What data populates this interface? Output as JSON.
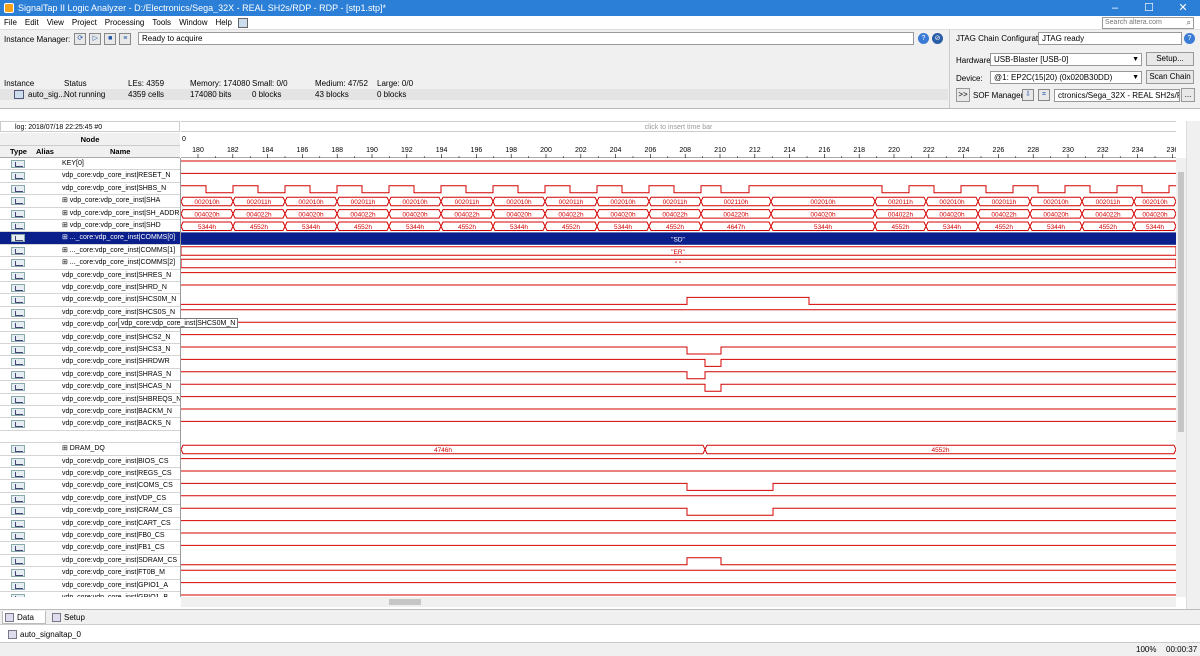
{
  "window": {
    "title": "SignalTap II Logic Analyzer - D:/Electronics/Sega_32X - REAL SH2s/RDP - RDP - [stp1.stp]*",
    "minimize": "–",
    "maximize": "☐",
    "close": "✕"
  },
  "menu": {
    "items": [
      "File",
      "Edit",
      "View",
      "Project",
      "Processing",
      "Tools",
      "Window",
      "Help"
    ],
    "search_placeholder": "Search altera.com"
  },
  "instance_manager": {
    "label": "Instance Manager:",
    "status": "Ready to acquire",
    "headers": [
      "Instance",
      "Status",
      "LEs: 4359",
      "Memory: 174080",
      "Small: 0/0",
      "Medium: 47/52",
      "Large: 0/0"
    ],
    "row": [
      "auto_sig...",
      "Not running",
      "4359 cells",
      "174080 bits",
      "0 blocks",
      "43 blocks",
      "0 blocks"
    ]
  },
  "jtag": {
    "config_label": "JTAG Chain Configuration:",
    "config_status": "JTAG ready",
    "hardware_label": "Hardware:",
    "hardware_value": "USB-Blaster [USB-0]",
    "setup_label": "Setup...",
    "device_label": "Device:",
    "device_value": "@1: EP2C(15|20) (0x020B30DD)",
    "scan_label": "Scan Chain",
    "sof_toggle": ">>",
    "sof_label": "SOF Manager:",
    "sof_value": "ctronics/Sega_32X - REAL SH2s/RDP.sof",
    "browse_label": "..."
  },
  "waveform": {
    "log": "log: 2018/07/18 22:25:45  #0",
    "insert_hint": "click to insert time bar",
    "node_header": "Node",
    "col_type": "Type",
    "col_alias": "Alias",
    "col_name": "Name",
    "ruler_origin": "0",
    "ruler_ticks": [
      "180",
      "182",
      "184",
      "186",
      "188",
      "190",
      "192",
      "194",
      "196",
      "198",
      "200",
      "202",
      "204",
      "206",
      "208",
      "210",
      "212",
      "214",
      "216",
      "218",
      "220",
      "222",
      "224",
      "226",
      "228",
      "230",
      "232",
      "234",
      "236"
    ],
    "tooltip": "vdp_core:vdp_core_inst|SHCS0M_N",
    "signals": [
      {
        "name": "KEY[0]",
        "bus": false
      },
      {
        "name": "vdp_core:vdp_core_inst|RESET_N",
        "bus": false
      },
      {
        "name": "vdp_core:vdp_core_inst|SHBS_N",
        "bus": false
      },
      {
        "name": "vdp_core:vdp_core_inst|SHA",
        "bus": true
      },
      {
        "name": "vdp_core:vdp_core_inst|SH_ADDR",
        "bus": true
      },
      {
        "name": "vdp_core:vdp_core_inst|SHD",
        "bus": true
      },
      {
        "name": "..._core:vdp_core_inst|COMMS[0]",
        "bus": true
      },
      {
        "name": "..._core:vdp_core_inst|COMMS[1]",
        "bus": true
      },
      {
        "name": "..._core:vdp_core_inst|COMMS[2]",
        "bus": true
      },
      {
        "name": "vdp_core:vdp_core_inst|SHRES_N",
        "bus": false
      },
      {
        "name": "vdp_core:vdp_core_inst|SHRD_N",
        "bus": false
      },
      {
        "name": "vdp_core:vdp_core_inst|SHCS0M_N",
        "bus": false
      },
      {
        "name": "vdp_core:vdp_core_inst|SHCS0S_N",
        "bus": false
      },
      {
        "name": "vdp_core:vdp_core_inst|SHCS1_N",
        "bus": false
      },
      {
        "name": "vdp_core:vdp_core_inst|SHCS2_N",
        "bus": false
      },
      {
        "name": "vdp_core:vdp_core_inst|SHCS3_N",
        "bus": false
      },
      {
        "name": "vdp_core:vdp_core_inst|SHRDWR",
        "bus": false
      },
      {
        "name": "vdp_core:vdp_core_inst|SHRAS_N",
        "bus": false
      },
      {
        "name": "vdp_core:vdp_core_inst|SHCAS_N",
        "bus": false
      },
      {
        "name": "vdp_core:vdp_core_inst|SHBREQS_N",
        "bus": false
      },
      {
        "name": "vdp_core:vdp_core_inst|BACKM_N",
        "bus": false
      },
      {
        "name": "vdp_core:vdp_core_inst|BACKS_N",
        "bus": false
      },
      {
        "name": "",
        "bus": false
      },
      {
        "name": "DRAM_DQ",
        "bus": true
      },
      {
        "name": "vdp_core:vdp_core_inst|BIOS_CS",
        "bus": false
      },
      {
        "name": "vdp_core:vdp_core_inst|REGS_CS",
        "bus": false
      },
      {
        "name": "vdp_core:vdp_core_inst|COMS_CS",
        "bus": false
      },
      {
        "name": "vdp_core:vdp_core_inst|VDP_CS",
        "bus": false
      },
      {
        "name": "vdp_core:vdp_core_inst|CRAM_CS",
        "bus": false
      },
      {
        "name": "vdp_core:vdp_core_inst|CART_CS",
        "bus": false
      },
      {
        "name": "vdp_core:vdp_core_inst|FB0_CS",
        "bus": false
      },
      {
        "name": "vdp_core:vdp_core_inst|FB1_CS",
        "bus": false
      },
      {
        "name": "vdp_core:vdp_core_inst|SDRAM_CS",
        "bus": false
      },
      {
        "name": "vdp_core:vdp_core_inst|FT0B_M",
        "bus": false
      },
      {
        "name": "vdp_core:vdp_core_inst|GPIO1_A",
        "bus": false
      },
      {
        "name": "vdp_core:vdp_core_inst|GPIO1_B",
        "bus": false
      },
      {
        "name": "vdp_core:vdp_core_inst|NMI_M",
        "bus": false
      }
    ],
    "buses": {
      "SHA": [
        "002010h",
        "002011h",
        "002010h",
        "002011h",
        "002010h",
        "002011h",
        "002010h",
        "002011h",
        "002010h",
        "002011h",
        "002110h",
        "002010h",
        "002011h",
        "002010h",
        "002011h",
        "002010h",
        "002011h",
        "002010h",
        "002011h",
        "002010h"
      ],
      "SH_ADDR": [
        "004020h",
        "004022h",
        "004020h",
        "004022h",
        "004020h",
        "004022h",
        "004020h",
        "004022h",
        "004020h",
        "004022h",
        "004220h",
        "004020h",
        "004022h",
        "004020h",
        "004022h",
        "004020h",
        "004022h",
        "004020h",
        "004022h",
        "004020h"
      ],
      "SHD": [
        "5344h",
        "4552h",
        "5344h",
        "4552h",
        "5344h",
        "4552h",
        "5344h",
        "4552h",
        "5344h",
        "4552h",
        "4647h",
        "5344h",
        "4552h",
        "5344h",
        "4552h",
        "5344h",
        "4552h",
        "5344h",
        "4552h",
        "5344h"
      ],
      "COMMS0": "\"SD\"",
      "COMMS1": "\"ER\"",
      "COMMS2": "\" \"",
      "DRAM_DQ": [
        "4746h",
        "4552h"
      ]
    }
  },
  "tabs": [
    "Data",
    "Setup"
  ],
  "file_tab": "auto_signaltap_0",
  "status": {
    "zoom": "100%",
    "time": "00:00:37"
  },
  "colors": {
    "wave": "#d40000",
    "select": "#0a1f8c",
    "title": "#2b7fd6"
  }
}
